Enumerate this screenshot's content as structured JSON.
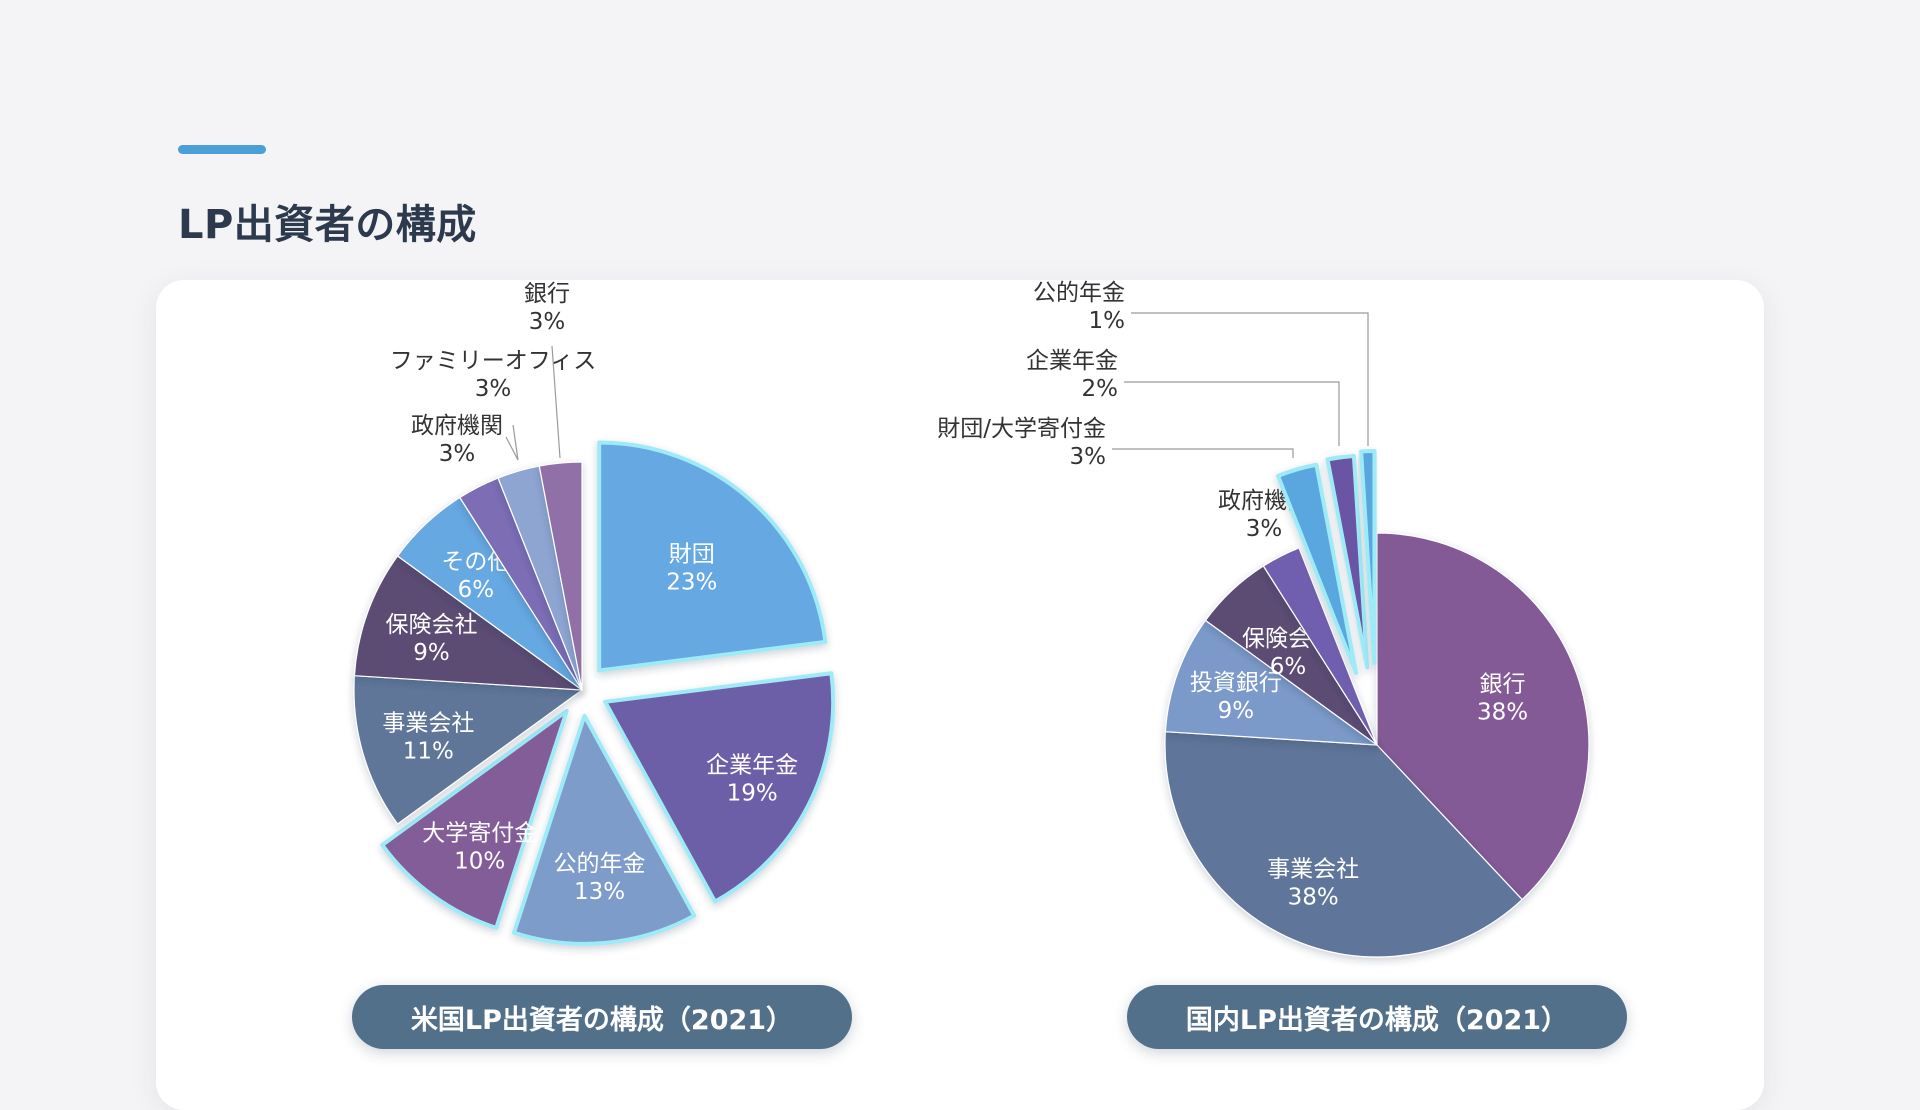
{
  "page": {
    "title": "LP出資者の構成"
  },
  "colors": {
    "accent": "#4a9fd8",
    "caption_bg": "#53708a",
    "highlight_border": "#9eeaf7"
  },
  "chart_data": [
    {
      "type": "pie",
      "caption": "米国LP出資者の構成（2021）",
      "slices": [
        {
          "label": "財団",
          "value": 23,
          "display": "23%",
          "color": "#66a8e2",
          "exploded": true,
          "label_pos": "inside"
        },
        {
          "label": "企業年金",
          "value": 19,
          "display": "19%",
          "color": "#6c5fa8",
          "exploded": true,
          "label_pos": "inside"
        },
        {
          "label": "公的年金",
          "value": 13,
          "display": "13%",
          "color": "#7d9cca",
          "exploded": true,
          "label_pos": "inside"
        },
        {
          "label": "大学寄付金",
          "value": 10,
          "display": "10%",
          "color": "#835d98",
          "exploded": true,
          "label_pos": "inside"
        },
        {
          "label": "事業会社",
          "value": 11,
          "display": "11%",
          "color": "#5f7699",
          "exploded": false,
          "label_pos": "inside"
        },
        {
          "label": "保険会社",
          "value": 9,
          "display": "9%",
          "color": "#5c4b73",
          "exploded": false,
          "label_pos": "inside"
        },
        {
          "label": "その他",
          "value": 6,
          "display": "6%",
          "color": "#66a8e2",
          "exploded": false,
          "label_pos": "inside"
        },
        {
          "label": "政府機関",
          "value": 3,
          "display": "3%",
          "color": "#7c6db5",
          "exploded": false,
          "label_pos": "outside"
        },
        {
          "label": "ファミリーオフィス",
          "value": 3,
          "display": "3%",
          "color": "#8ea5d2",
          "exploded": false,
          "label_pos": "outside"
        },
        {
          "label": "銀行",
          "value": 3,
          "display": "3%",
          "color": "#9070a6",
          "exploded": false,
          "label_pos": "outside"
        }
      ]
    },
    {
      "type": "pie",
      "caption": "国内LP出資者の構成（2021）",
      "slices": [
        {
          "label": "銀行",
          "value": 38,
          "display": "38%",
          "color": "#835a95",
          "exploded": false,
          "label_pos": "inside"
        },
        {
          "label": "事業会社",
          "value": 38,
          "display": "38%",
          "color": "#5e7599",
          "exploded": false,
          "label_pos": "inside"
        },
        {
          "label": "投資銀行",
          "value": 9,
          "display": "9%",
          "color": "#7c9ac9",
          "exploded": false,
          "label_pos": "inside"
        },
        {
          "label": "保険会社",
          "value": 6,
          "display": "6%",
          "color": "#5c4b73",
          "exploded": false,
          "label_pos": "inside"
        },
        {
          "label": "政府機関",
          "value": 3,
          "display": "3%",
          "color": "#6f5fae",
          "exploded": false,
          "label_pos": "outside"
        },
        {
          "label": "財団/大学寄付金",
          "value": 3,
          "display": "3%",
          "color": "#5aa6df",
          "exploded": true,
          "label_pos": "outside"
        },
        {
          "label": "企業年金",
          "value": 2,
          "display": "2%",
          "color": "#6a55a5",
          "exploded": true,
          "label_pos": "outside"
        },
        {
          "label": "公的年金",
          "value": 1,
          "display": "1%",
          "color": "#5aa6df",
          "exploded": true,
          "label_pos": "outside"
        }
      ]
    }
  ]
}
